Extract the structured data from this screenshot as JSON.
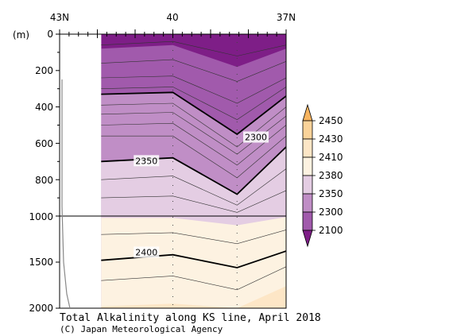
{
  "chart_data": {
    "type": "heatmap",
    "title": "Total Alkalinity along KS line, April 2018",
    "credit": "(C) Japan Meteorological Agency",
    "y_unit_label": "(m)",
    "x_ticks": [
      "43N",
      "40",
      "37N"
    ],
    "x_range": [
      43,
      37
    ],
    "y_ticks_upper": [
      0,
      200,
      400,
      600,
      800,
      1000
    ],
    "y_ticks_lower": [
      1500,
      2000
    ],
    "y_range": [
      0,
      2000
    ],
    "y_break_depth": 1000,
    "colorbar": {
      "levels": [
        "2450",
        "2430",
        "2410",
        "2380",
        "2350",
        "2300",
        "2100"
      ],
      "colors": [
        "#f7b460",
        "#fad39a",
        "#fde6c6",
        "#fdf2e1",
        "#e4cde3",
        "#c08ec6",
        "#a15aac",
        "#7e1e87"
      ]
    },
    "contour_labels": [
      {
        "text": "2300",
        "lat": 37.8,
        "depth": 570
      },
      {
        "text": "2350",
        "lat": 40.7,
        "depth": 700
      },
      {
        "text": "2400",
        "lat": 40.7,
        "depth": 1400
      }
    ],
    "station_lats": [
      40.0,
      38.3
    ],
    "data_start_lat": 41.9,
    "contours": [
      {
        "level": 2300,
        "bold": true,
        "points": [
          [
            41.9,
            330
          ],
          [
            40.0,
            320
          ],
          [
            38.3,
            550
          ],
          [
            37.0,
            340
          ]
        ]
      },
      {
        "level": 2350,
        "bold": true,
        "points": [
          [
            41.9,
            700
          ],
          [
            40.0,
            680
          ],
          [
            38.3,
            880
          ],
          [
            37.0,
            620
          ]
        ]
      },
      {
        "level": 2400,
        "bold": true,
        "points": [
          [
            41.9,
            1480
          ],
          [
            40.0,
            1420
          ],
          [
            38.3,
            1560
          ],
          [
            37.0,
            1380
          ]
        ]
      }
    ]
  }
}
